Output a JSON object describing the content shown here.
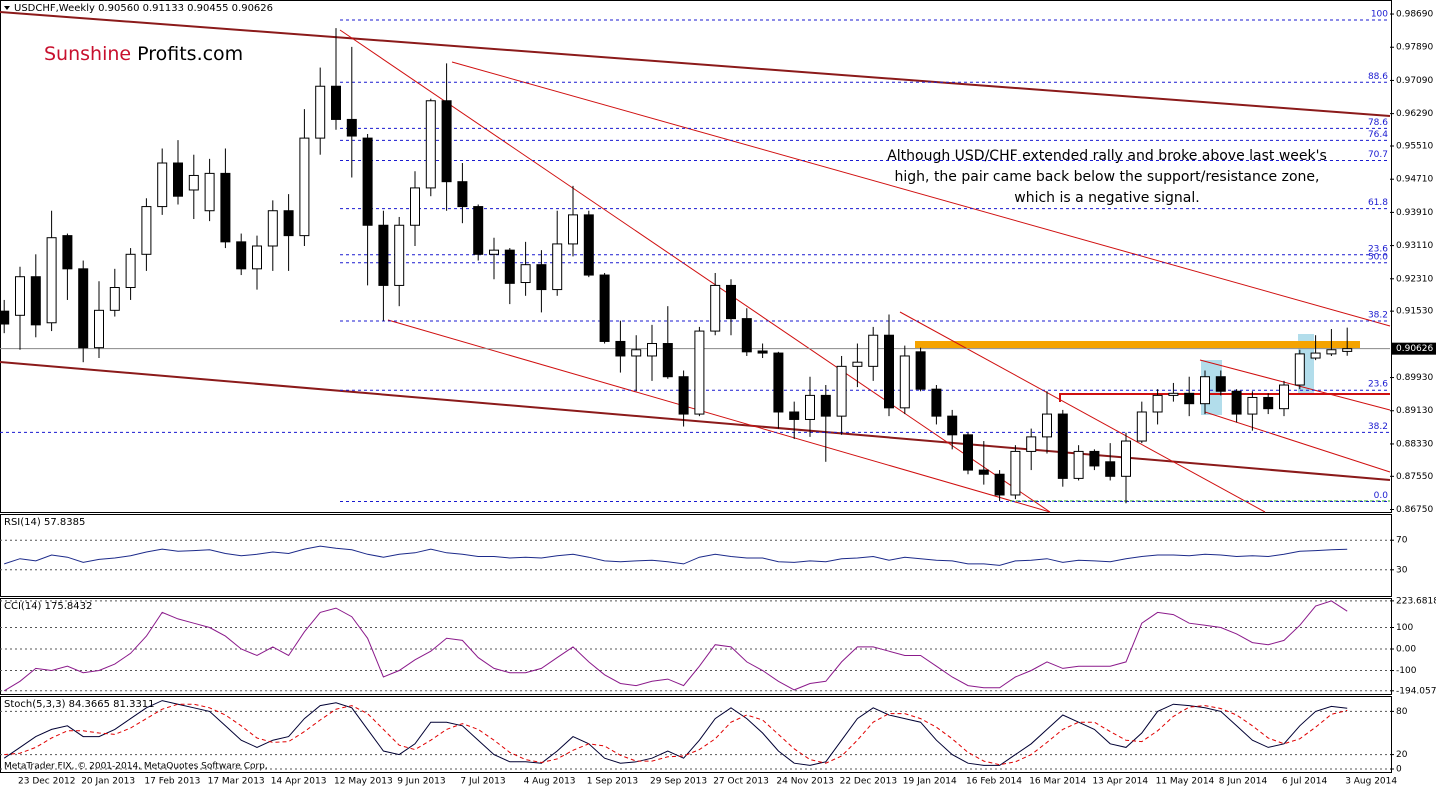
{
  "chart_data": [
    {
      "type": "candlestick",
      "title": "USDCHF,Weekly  0.90560 0.91133 0.90455 0.90626",
      "categories": [
        null,
        "23 Dec 2012",
        null,
        null,
        null,
        "20 Jan 2013",
        null,
        null,
        null,
        "17 Feb 2013",
        null,
        null,
        null,
        "17 Mar 2013",
        null,
        null,
        null,
        "14 Apr 2013",
        null,
        null,
        null,
        "12 May 2013",
        null,
        null,
        null,
        "9 Jun 2013",
        null,
        null,
        null,
        "7 Jul 2013",
        null,
        null,
        null,
        "4 Aug 2013",
        null,
        null,
        null,
        "1 Sep 2013",
        null,
        null,
        null,
        "29 Sep 2013",
        null,
        null,
        null,
        "27 Oct 2013",
        null,
        null,
        null,
        "24 Nov 2013",
        null,
        null,
        null,
        "22 Dec 2013",
        null,
        null,
        null,
        "19 Jan 2014",
        null,
        null,
        null,
        "16 Feb 2014",
        null,
        null,
        null,
        "16 Mar 2014",
        null,
        null,
        null,
        "13 Apr 2014",
        null,
        null,
        null,
        "11 May 2014",
        null,
        null,
        null,
        "8 Jun 2014",
        null,
        null,
        null,
        "6 Jul 2014",
        null,
        null,
        null,
        "3 Aug 2014"
      ],
      "open": [
        0.9153,
        0.9143,
        0.9236,
        0.9125,
        0.9335,
        0.9255,
        0.9065,
        0.9155,
        0.921,
        0.929,
        0.9405,
        0.951,
        0.9445,
        0.9395,
        0.9485,
        0.932,
        0.9255,
        0.931,
        0.9395,
        0.9335,
        0.957,
        0.9695,
        0.9615,
        0.957,
        0.936,
        0.9215,
        0.936,
        0.945,
        0.966,
        0.9465,
        0.9405,
        0.929,
        0.93,
        0.9222,
        0.9265,
        0.9205,
        0.9315,
        0.9385,
        0.924,
        0.908,
        0.9045,
        0.9045,
        0.9075,
        0.8995,
        0.8905,
        0.9105,
        0.9215,
        0.9135,
        0.9057,
        0.9052,
        0.891,
        0.8892,
        0.895,
        0.89,
        0.902,
        0.902,
        0.9095,
        0.892,
        0.9055,
        0.8965,
        0.89,
        0.8855,
        0.877,
        0.876,
        0.871,
        0.8815,
        0.885,
        0.8905,
        0.875,
        0.8815,
        0.879,
        0.8755,
        0.884,
        0.891,
        0.895,
        0.8955,
        0.893,
        0.8995,
        0.896,
        0.8905,
        0.8945,
        0.8918,
        0.8975,
        0.904,
        0.905,
        0.9056
      ],
      "high": [
        0.918,
        0.926,
        0.929,
        0.9395,
        0.934,
        0.9275,
        0.9225,
        0.9255,
        0.9305,
        0.9425,
        0.9545,
        0.9565,
        0.953,
        0.952,
        0.9545,
        0.934,
        0.9335,
        0.942,
        0.9435,
        0.964,
        0.974,
        0.9835,
        0.979,
        0.958,
        0.9395,
        0.938,
        0.949,
        0.9665,
        0.975,
        0.951,
        0.941,
        0.933,
        0.9305,
        0.932,
        0.93,
        0.9395,
        0.9455,
        0.9395,
        0.9245,
        0.913,
        0.9095,
        0.912,
        0.9165,
        0.901,
        0.9115,
        0.9245,
        0.923,
        0.916,
        0.9075,
        0.9055,
        0.8935,
        0.8995,
        0.8975,
        0.9045,
        0.9075,
        0.9115,
        0.9145,
        0.907,
        0.9065,
        0.8975,
        0.8915,
        0.886,
        0.884,
        0.877,
        0.883,
        0.887,
        0.896,
        0.8915,
        0.883,
        0.882,
        0.8835,
        0.886,
        0.8935,
        0.8965,
        0.898,
        0.8995,
        0.901,
        0.901,
        0.8965,
        0.896,
        0.8955,
        0.8985,
        0.906,
        0.9095,
        0.911,
        0.91133
      ],
      "low": [
        0.91,
        0.906,
        0.909,
        0.9105,
        0.918,
        0.903,
        0.904,
        0.914,
        0.918,
        0.925,
        0.9385,
        0.941,
        0.9375,
        0.937,
        0.9305,
        0.924,
        0.9205,
        0.925,
        0.925,
        0.931,
        0.953,
        0.959,
        0.9475,
        0.9215,
        0.913,
        0.9165,
        0.931,
        0.943,
        0.9395,
        0.9365,
        0.9275,
        0.923,
        0.917,
        0.919,
        0.915,
        0.919,
        0.9285,
        0.9235,
        0.9075,
        0.9005,
        0.896,
        0.8985,
        0.899,
        0.8875,
        0.89,
        0.9095,
        0.9095,
        0.9045,
        0.904,
        0.887,
        0.8845,
        0.885,
        0.879,
        0.8855,
        0.897,
        0.8985,
        0.89,
        0.8905,
        0.896,
        0.888,
        0.882,
        0.876,
        0.8735,
        0.8695,
        0.87,
        0.877,
        0.881,
        0.873,
        0.8745,
        0.877,
        0.8745,
        0.869,
        0.8835,
        0.888,
        0.8935,
        0.89,
        0.8905,
        0.895,
        0.8885,
        0.8865,
        0.8905,
        0.89,
        0.8965,
        0.9035,
        0.9045,
        0.90455
      ],
      "close": [
        0.9122,
        0.9236,
        0.912,
        0.933,
        0.9255,
        0.9065,
        0.9155,
        0.921,
        0.929,
        0.9405,
        0.951,
        0.943,
        0.948,
        0.9485,
        0.932,
        0.9255,
        0.931,
        0.9395,
        0.9335,
        0.957,
        0.9695,
        0.9615,
        0.9575,
        0.936,
        0.9215,
        0.936,
        0.945,
        0.966,
        0.9465,
        0.9405,
        0.929,
        0.93,
        0.922,
        0.9265,
        0.9205,
        0.9315,
        0.9385,
        0.924,
        0.908,
        0.9045,
        0.906,
        0.9075,
        0.8995,
        0.8905,
        0.9105,
        0.9215,
        0.9135,
        0.9055,
        0.9052,
        0.891,
        0.8892,
        0.895,
        0.89,
        0.902,
        0.903,
        0.9095,
        0.892,
        0.9045,
        0.8965,
        0.89,
        0.8855,
        0.877,
        0.876,
        0.871,
        0.8815,
        0.885,
        0.8905,
        0.875,
        0.8815,
        0.878,
        0.8755,
        0.884,
        0.891,
        0.895,
        0.8955,
        0.893,
        0.8995,
        0.896,
        0.8905,
        0.8945,
        0.8918,
        0.8975,
        0.905,
        0.9052,
        0.906,
        0.90626
      ],
      "up_color": "#ffffff",
      "down_color": "#000000",
      "ylim": [
        0.8669,
        0.9898
      ],
      "yticks": [
        {
          "value": 0.9869,
          "label": "0.98690"
        },
        {
          "value": 0.9789,
          "label": "0.97890"
        },
        {
          "value": 0.9709,
          "label": "0.97090"
        },
        {
          "value": 0.9629,
          "label": "0.96290"
        },
        {
          "value": 0.9551,
          "label": "0.95510"
        },
        {
          "value": 0.9471,
          "label": "0.94710"
        },
        {
          "value": 0.9391,
          "label": "0.93910"
        },
        {
          "value": 0.9311,
          "label": "0.93110"
        },
        {
          "value": 0.9231,
          "label": "0.92310"
        },
        {
          "value": 0.9153,
          "label": "0.91530"
        },
        {
          "value": 0.8993,
          "label": "0.89930"
        },
        {
          "value": 0.8913,
          "label": "0.89130"
        },
        {
          "value": 0.8833,
          "label": "0.88330"
        },
        {
          "value": 0.8755,
          "label": "0.87550"
        },
        {
          "value": 0.8675,
          "label": "0.86750"
        }
      ],
      "fibonacci": [
        {
          "value": 100,
          "price": 0.98546
        },
        {
          "value": 88.6,
          "price": 0.97046
        },
        {
          "value": 78.6,
          "price": 0.95934
        },
        {
          "value": 76.4,
          "price": 0.95644
        },
        {
          "value": 70.7,
          "price": 0.95161
        },
        {
          "value": 61.8,
          "price": 0.94
        },
        {
          "value": 23.6,
          "price": 0.92889
        },
        {
          "value": 50,
          "label": "50.0",
          "price": 0.92695
        },
        {
          "value": 38.2,
          "price": 0.91293
        },
        {
          "value": 23.6,
          "price": 0.89625
        },
        {
          "value": 38.2,
          "price": 0.8861
        },
        {
          "value": 0,
          "label": "0.0",
          "price": 0.86942
        }
      ],
      "annotation": [
        "Although USD/CHF extended rally and broke above last week's",
        "high, the pair came back below the support/resistance zone,",
        "which is a negative signal."
      ],
      "logo": [
        "Sunshine",
        "Profits.com"
      ]
    },
    {
      "type": "line",
      "title": "RSI(14) 57.8385",
      "color": "#1c2a8a",
      "values": [
        38,
        45,
        42,
        50,
        47,
        40,
        44,
        46,
        49,
        54,
        58,
        55,
        56,
        57,
        52,
        49,
        51,
        54,
        52,
        58,
        62,
        59,
        57,
        51,
        47,
        51,
        53,
        58,
        53,
        51,
        48,
        48,
        46,
        47,
        46,
        49,
        51,
        47,
        42,
        41,
        42,
        43,
        41,
        38,
        47,
        51,
        48,
        46,
        46,
        41,
        40,
        42,
        41,
        45,
        46,
        48,
        43,
        47,
        45,
        43,
        42,
        38,
        38,
        36,
        42,
        43,
        45,
        40,
        43,
        42,
        41,
        45,
        48,
        50,
        50,
        49,
        51,
        50,
        48,
        49,
        48,
        51,
        55,
        56,
        57,
        57.8385
      ],
      "ylim": [
        0,
        100
      ],
      "yticks": [
        30,
        70
      ],
      "grid": true
    },
    {
      "type": "line",
      "title": "CCI(14) 175.8432",
      "color": "#8b1a8b",
      "values": [
        -194.0578,
        -150,
        -90,
        -100,
        -80,
        -110,
        -100,
        -70,
        -20,
        60,
        170,
        140,
        120,
        100,
        60,
        0,
        -30,
        10,
        -30,
        80,
        170,
        190,
        150,
        50,
        -130,
        -100,
        -50,
        -10,
        50,
        40,
        -40,
        -90,
        -110,
        -110,
        -90,
        -40,
        10,
        -60,
        -120,
        -160,
        -170,
        -150,
        -140,
        -170,
        -80,
        20,
        10,
        -60,
        -100,
        -150,
        -190,
        -160,
        -150,
        -60,
        10,
        10,
        -10,
        -30,
        -30,
        -80,
        -130,
        -170,
        -180,
        -180,
        -130,
        -100,
        -60,
        -90,
        -80,
        -80,
        -80,
        -60,
        120,
        170,
        160,
        120,
        110,
        100,
        70,
        30,
        20,
        40,
        110,
        200,
        223.6818,
        175.8432
      ],
      "ylim": [
        -209,
        237
      ],
      "yticks": [
        223.6818,
        100,
        {
          "value": 0,
          "label": "0.00"
        },
        -100,
        -194.0578
      ],
      "grid": true
    },
    {
      "type": "line",
      "title": "Stoch(5,3,3) 84.3665 81.3311",
      "series": [
        {
          "color": "#000033",
          "dashed": false,
          "values": [
            15,
            30,
            45,
            55,
            60,
            45,
            45,
            55,
            70,
            85,
            95,
            90,
            85,
            80,
            60,
            40,
            30,
            40,
            45,
            70,
            88,
            92,
            85,
            55,
            25,
            20,
            35,
            65,
            65,
            60,
            40,
            20,
            10,
            10,
            8,
            25,
            45,
            35,
            15,
            8,
            10,
            15,
            25,
            15,
            40,
            70,
            85,
            70,
            50,
            25,
            8,
            5,
            10,
            40,
            70,
            85,
            75,
            70,
            65,
            40,
            20,
            8,
            5,
            5,
            20,
            35,
            55,
            75,
            65,
            55,
            35,
            30,
            50,
            80,
            90,
            88,
            85,
            80,
            60,
            40,
            30,
            35,
            60,
            80,
            87,
            84.3665
          ]
        },
        {
          "color": "#e00000",
          "dashed": true,
          "values": [
            20,
            22,
            30,
            43,
            53,
            53,
            50,
            48,
            57,
            70,
            83,
            90,
            90,
            85,
            75,
            60,
            43,
            37,
            38,
            52,
            68,
            83,
            88,
            77,
            55,
            33,
            27,
            40,
            55,
            63,
            55,
            40,
            23,
            13,
            9,
            14,
            26,
            35,
            32,
            19,
            11,
            11,
            17,
            18,
            27,
            42,
            65,
            75,
            68,
            48,
            28,
            13,
            8,
            18,
            40,
            65,
            77,
            77,
            70,
            58,
            42,
            23,
            11,
            6,
            10,
            20,
            37,
            55,
            65,
            65,
            52,
            40,
            38,
            53,
            73,
            86,
            88,
            84,
            75,
            60,
            43,
            35,
            42,
            58,
            76,
            81.3311
          ]
        }
      ],
      "ylim": [
        0,
        100
      ],
      "yticks": [
        0,
        20,
        80
      ],
      "grid": true
    }
  ],
  "footer": "MetaTrader FIX, © 2001-2014, MetaQuotes Software Corp."
}
